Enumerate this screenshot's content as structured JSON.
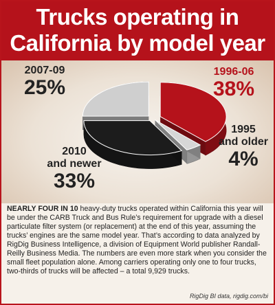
{
  "title": {
    "line1": "Trucks operating in",
    "line2": "California by model year"
  },
  "chart_data": {
    "type": "pie",
    "title": "Trucks operating in California by model year",
    "slices": [
      {
        "label": "1996-06",
        "label_line2": "",
        "percent_label": "38%",
        "value": 38,
        "color": "#b5121b"
      },
      {
        "label": "1995",
        "label_line2": "and older",
        "percent_label": "4%",
        "value": 4,
        "color": "#d6d6d6"
      },
      {
        "label": "2010",
        "label_line2": "and newer",
        "percent_label": "33%",
        "value": 33,
        "color": "#1c1c1c"
      },
      {
        "label": "2007-09",
        "label_line2": "",
        "percent_label": "25%",
        "value": 25,
        "color": "#cfcfcf"
      }
    ]
  },
  "body": {
    "lead": "NEARLY FOUR IN 10",
    "text": " heavy-duty trucks operated within California this year will be under the CARB Truck and Bus Rule’s requirement for upgrade with a diesel particulate filter system (or replacement) at the end of this year, assuming the trucks’ engines are the same model year. That’s according to data analyzed by RigDig Business Intelligence, a division of Equipment World publisher Randall-Reilly Business Media. The numbers are even more stark when you consider the small fleet population alone. Among carriers operating only one to four trucks, two-thirds of trucks will be affected – a total 9,929 trucks."
  },
  "source": "RigDig BI data, rigdig.com/bi"
}
